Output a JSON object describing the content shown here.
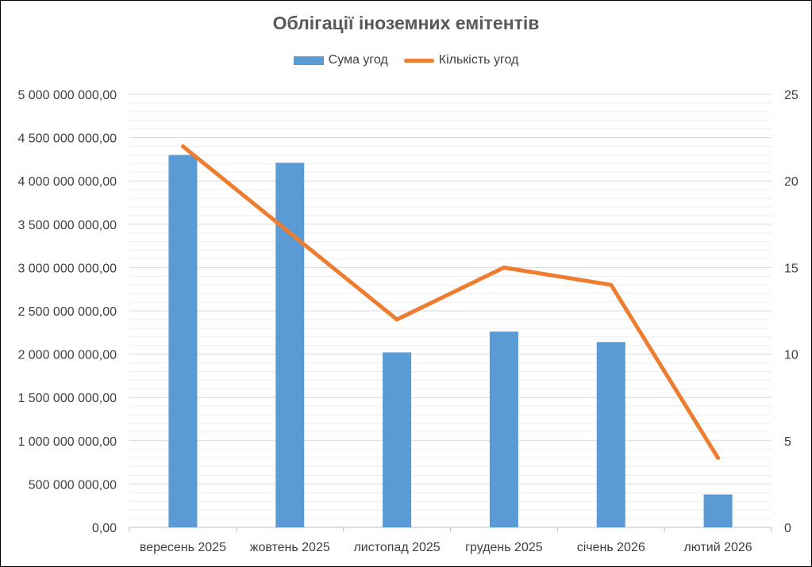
{
  "chart_data": {
    "type": "bar",
    "title": "Облігації іноземних емітентів",
    "categories": [
      "вересень 2025",
      "жовтень 2025",
      "листопад 2025",
      "грудень 2025",
      "січень 2026",
      "лютий 2026"
    ],
    "series": [
      {
        "name": "Сума угод",
        "type": "bar",
        "axis": "left",
        "color": "#5B9BD5",
        "values": [
          4300000000,
          4210000000,
          2020000000,
          2260000000,
          2140000000,
          380000000
        ]
      },
      {
        "name": "Кількість угод",
        "type": "line",
        "axis": "right",
        "color": "#ED7D31",
        "values": [
          22,
          17,
          12,
          15,
          14,
          4
        ]
      }
    ],
    "y_left": {
      "min": 0,
      "max": 5000000000,
      "ticks": [
        "0,00",
        "500 000 000,00",
        "1 000 000 000,00",
        "1 500 000 000,00",
        "2 000 000 000,00",
        "2 500 000 000,00",
        "3 000 000 000,00",
        "3 500 000 000,00",
        "4 000 000 000,00",
        "4 500 000 000,00",
        "5 000 000 000,00"
      ]
    },
    "y_right": {
      "min": 0,
      "max": 25,
      "ticks": [
        "0",
        "5",
        "10",
        "15",
        "20",
        "25"
      ]
    },
    "grid": true,
    "legend_position": "top"
  }
}
